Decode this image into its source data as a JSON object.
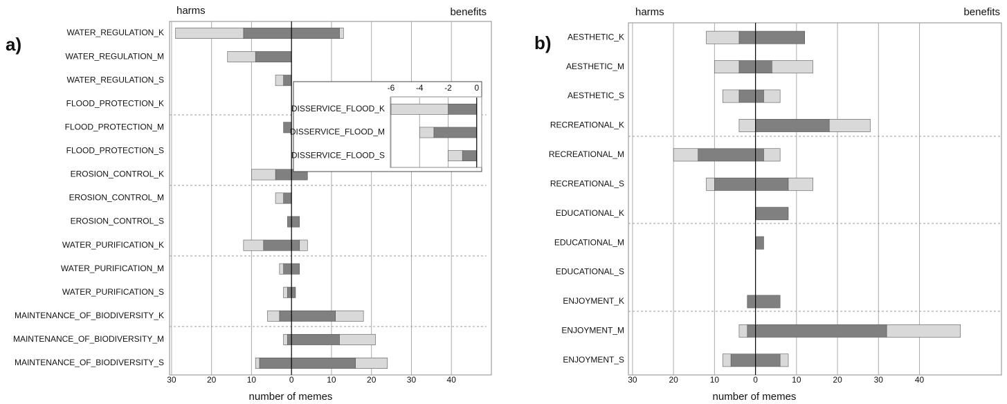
{
  "chart_data": [
    {
      "type": "bar",
      "orientation": "horizontal",
      "stacked": true,
      "grid": true,
      "panel_label": "a)",
      "left_label": "harms",
      "right_label": "benefits",
      "xlabel": "number of memes",
      "categories": [
        "WATER_REGULATION_K",
        "WATER_REGULATION_M",
        "WATER_REGULATION_S",
        "FLOOD_PROTECTION_K",
        "FLOOD_PROTECTION_M",
        "FLOOD_PROTECTION_S",
        "EROSION_CONTROL_K",
        "EROSION_CONTROL_M",
        "EROSION_CONTROL_S",
        "WATER_PURIFICATION_K",
        "WATER_PURIFICATION_M",
        "WATER_PURIFICATION_S",
        "MAINTENANCE_OF_BIODIVERSITY_K",
        "MAINTENANCE_OF_BIODIVERSITY_M",
        "MAINTENANCE_OF_BIODIVERSITY_S"
      ],
      "series": [
        {
          "color": "#808080",
          "values": [
            -12,
            -9,
            -2,
            0,
            -2,
            0,
            -4,
            -2,
            -1,
            -7,
            -2,
            -1,
            -3,
            -1,
            -8
          ]
        },
        {
          "color": "#d9d9d9",
          "values": [
            -17,
            -7,
            -2,
            0,
            0,
            0,
            -6,
            -2,
            0,
            -5,
            -1,
            -1,
            -3,
            -1,
            -1
          ]
        },
        {
          "color": "#808080",
          "values": [
            12,
            0,
            0,
            0,
            0,
            0,
            4,
            0,
            2,
            2,
            2,
            1,
            11,
            12,
            16
          ]
        },
        {
          "color": "#d9d9d9",
          "values": [
            1,
            0,
            0,
            0,
            0,
            0,
            0,
            0,
            0,
            2,
            0,
            0,
            7,
            9,
            8
          ]
        }
      ],
      "xlim": [
        -30.5,
        50
      ],
      "xticks": [
        {
          "value": -30,
          "label": "30"
        },
        {
          "value": -20,
          "label": "20"
        },
        {
          "value": -10,
          "label": "10"
        },
        0,
        10,
        20,
        30,
        40
      ]
    },
    {
      "type": "bar",
      "orientation": "horizontal",
      "stacked": true,
      "grid": true,
      "categories": [
        "DISSERVICE_FLOOD_K",
        "DISSERVICE_FLOOD_M",
        "DISSERVICE_FLOOD_S"
      ],
      "series": [
        {
          "color": "#808080",
          "values": [
            -2,
            -3,
            -1
          ]
        },
        {
          "color": "#d9d9d9",
          "values": [
            -4,
            -1,
            -1
          ]
        }
      ],
      "xlim": [
        -6.05,
        0.35
      ],
      "xticks": [
        -6,
        -4,
        -2,
        0
      ]
    },
    {
      "type": "bar",
      "orientation": "horizontal",
      "stacked": true,
      "grid": true,
      "panel_label": "b)",
      "left_label": "harms",
      "right_label": "benefits",
      "xlabel": "number of memes",
      "categories": [
        "AESTHETIC_K",
        "AESTHETIC_M",
        "AESTHETIC_S",
        "RECREATIONAL_K",
        "RECREATIONAL_M",
        "RECREATIONAL_S",
        "EDUCATIONAL_K",
        "EDUCATIONAL_M",
        "EDUCATIONAL_S",
        "ENJOYMENT_K",
        "ENJOYMENT_M",
        "ENJOYMENT_S"
      ],
      "series": [
        {
          "color": "#808080",
          "values": [
            -4,
            -4,
            -4,
            0,
            -14,
            -10,
            0,
            0,
            0,
            -2,
            -2,
            -6
          ]
        },
        {
          "color": "#d9d9d9",
          "values": [
            -8,
            -6,
            -4,
            -4,
            -6,
            -2,
            0,
            0,
            0,
            0,
            -2,
            -2
          ]
        },
        {
          "color": "#808080",
          "values": [
            12,
            4,
            2,
            18,
            2,
            8,
            8,
            2,
            0,
            6,
            32,
            6
          ]
        },
        {
          "color": "#d9d9d9",
          "values": [
            0,
            10,
            4,
            10,
            4,
            6,
            0,
            0,
            0,
            0,
            18,
            2
          ]
        }
      ],
      "xlim": [
        -31,
        60
      ],
      "xticks": [
        {
          "value": -30,
          "label": "30"
        },
        {
          "value": -20,
          "label": "20"
        },
        {
          "value": -10,
          "label": "10"
        },
        0,
        10,
        20,
        30,
        40
      ]
    }
  ]
}
